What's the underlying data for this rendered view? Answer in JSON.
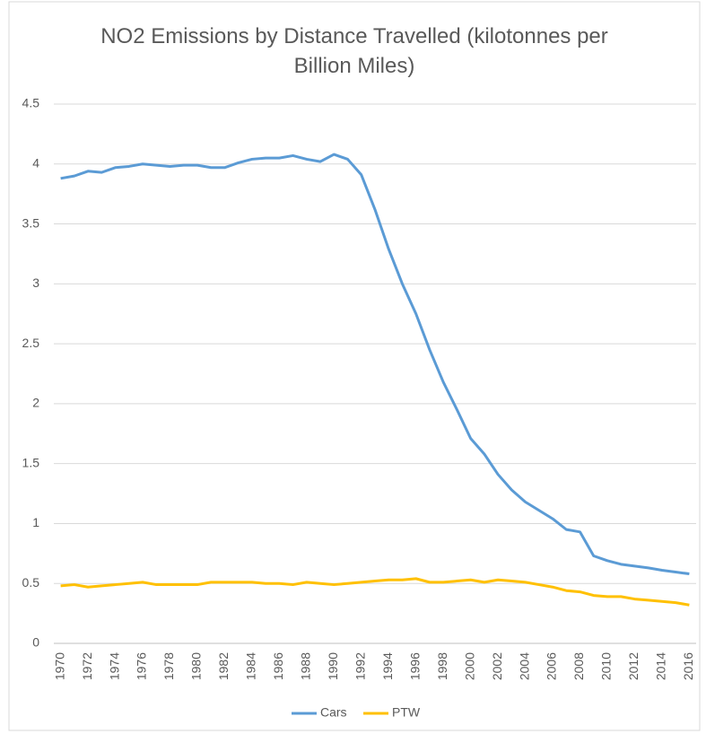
{
  "chart_data": {
    "type": "line",
    "title": "NO2 Emissions by Distance Travelled (kilotonnes per Billion Miles)",
    "categories": [
      1970,
      null,
      1972,
      null,
      1974,
      null,
      1976,
      null,
      1978,
      null,
      1980,
      null,
      1982,
      null,
      1984,
      null,
      1986,
      null,
      1988,
      null,
      1990,
      null,
      1992,
      null,
      1994,
      null,
      1996,
      null,
      1998,
      null,
      2000,
      null,
      2002,
      null,
      2004,
      null,
      2006,
      null,
      2008,
      null,
      2010,
      null,
      2012,
      null,
      2014,
      null,
      2016
    ],
    "series": [
      {
        "name": "Cars",
        "color": "#5b9bd5",
        "values": [
          3.88,
          3.9,
          3.94,
          3.93,
          3.97,
          3.98,
          4.0,
          3.99,
          3.98,
          3.99,
          3.99,
          3.97,
          3.97,
          4.01,
          4.04,
          4.05,
          4.05,
          4.07,
          4.04,
          4.02,
          4.08,
          4.04,
          3.91,
          3.62,
          3.29,
          3.0,
          2.75,
          2.45,
          2.18,
          1.95,
          1.71,
          1.58,
          1.41,
          1.28,
          1.18,
          1.11,
          1.04,
          0.95,
          0.93,
          0.73,
          0.69,
          0.66,
          0.645,
          0.63,
          0.61,
          0.595,
          0.58
        ]
      },
      {
        "name": "PTW",
        "color": "#ffc000",
        "values": [
          0.48,
          0.49,
          0.47,
          0.48,
          0.49,
          0.5,
          0.51,
          0.49,
          0.49,
          0.49,
          0.49,
          0.51,
          0.51,
          0.51,
          0.51,
          0.5,
          0.5,
          0.49,
          0.51,
          0.5,
          0.49,
          0.5,
          0.51,
          0.52,
          0.53,
          0.53,
          0.54,
          0.51,
          0.51,
          0.52,
          0.53,
          0.51,
          0.53,
          0.52,
          0.51,
          0.49,
          0.47,
          0.44,
          0.43,
          0.4,
          0.39,
          0.39,
          0.37,
          0.36,
          0.35,
          0.34,
          0.32
        ]
      }
    ],
    "ylim": [
      0,
      4.5
    ],
    "yticks": [
      0,
      0.5,
      1,
      1.5,
      2,
      2.5,
      3,
      3.5,
      4,
      4.5
    ],
    "grid": true,
    "legend": "bottom"
  }
}
